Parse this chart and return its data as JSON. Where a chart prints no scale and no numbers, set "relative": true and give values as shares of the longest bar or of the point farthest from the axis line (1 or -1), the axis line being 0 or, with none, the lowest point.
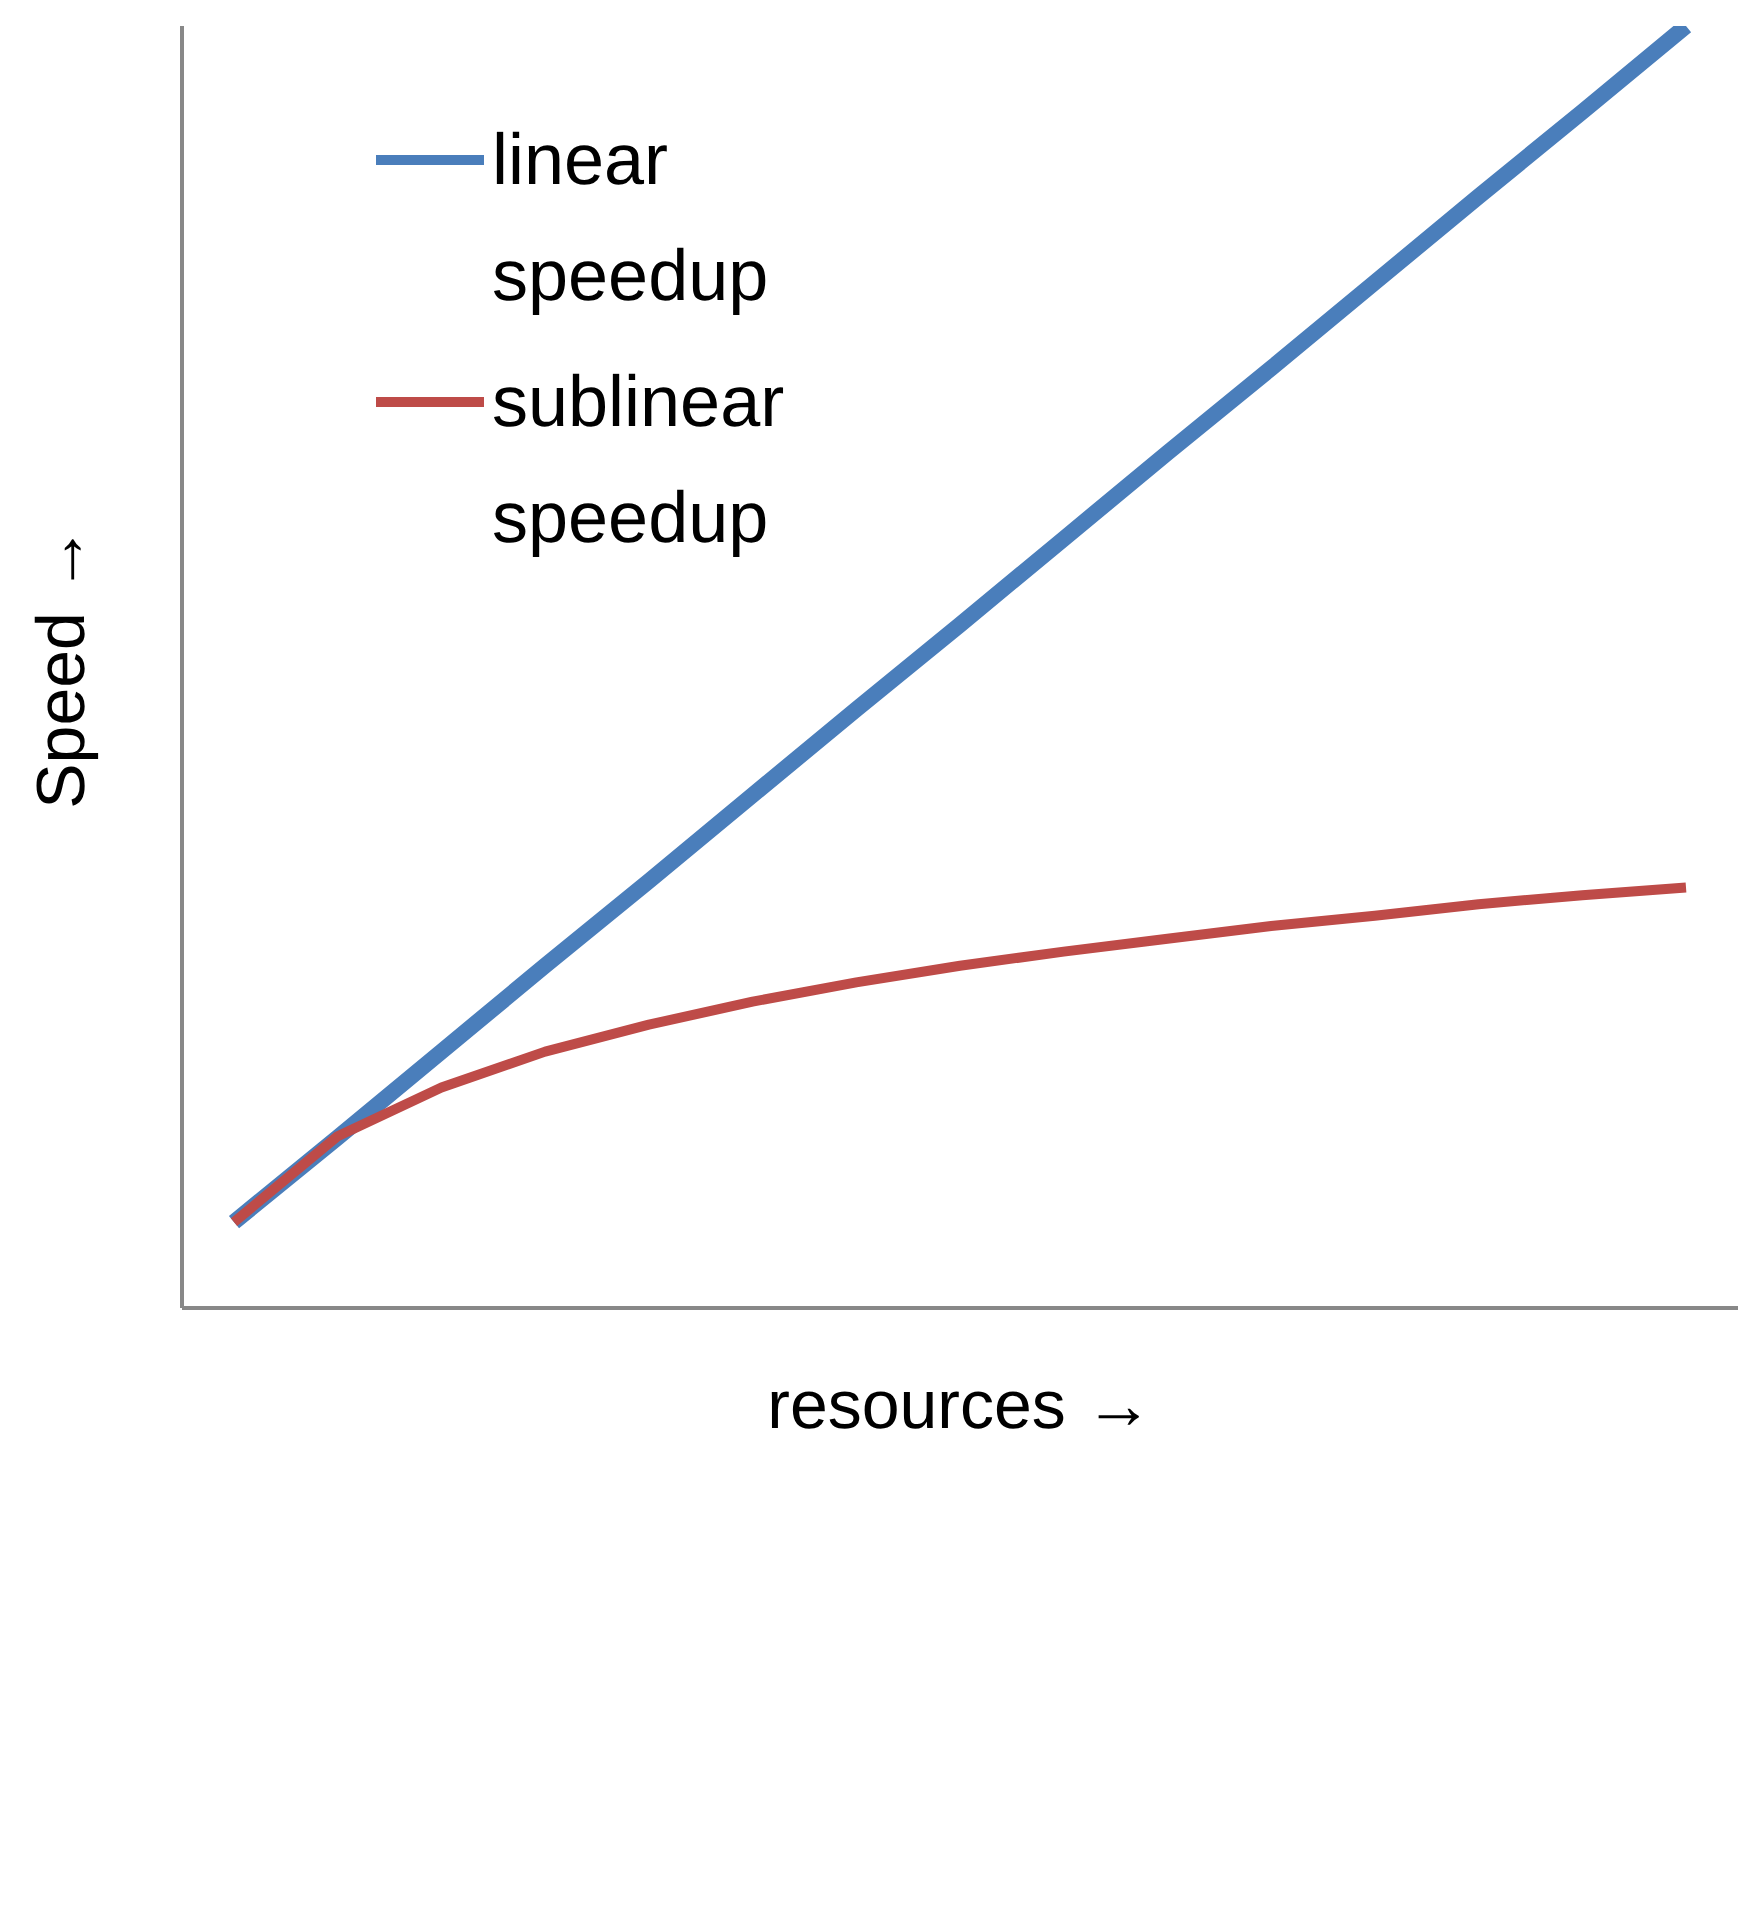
{
  "chart_data": {
    "type": "line",
    "relative": true,
    "xlabel": "resources →",
    "ylabel": "Speed →",
    "legend": "top left",
    "grid": false,
    "marker": "none",
    "line_style": "solid",
    "categories": [
      null,
      null,
      null,
      null,
      null,
      null,
      null,
      null,
      null,
      null,
      null,
      null,
      null,
      null,
      null
    ],
    "series": [
      {
        "name": "linear speedup",
        "color": "#4a7ebb",
        "values": [
          0.067,
          0.133,
          0.2,
          0.267,
          0.333,
          0.4,
          0.467,
          0.533,
          0.6,
          0.667,
          0.733,
          0.8,
          0.867,
          0.933,
          1
        ]
      },
      {
        "name": "sublinear speedup",
        "color": "#be4b48",
        "values": [
          0.067,
          0.134,
          0.172,
          0.2,
          0.221,
          0.239,
          0.254,
          0.267,
          0.278,
          0.288,
          0.298,
          0.306,
          0.315,
          0.322,
          0.328
        ]
      }
    ]
  }
}
